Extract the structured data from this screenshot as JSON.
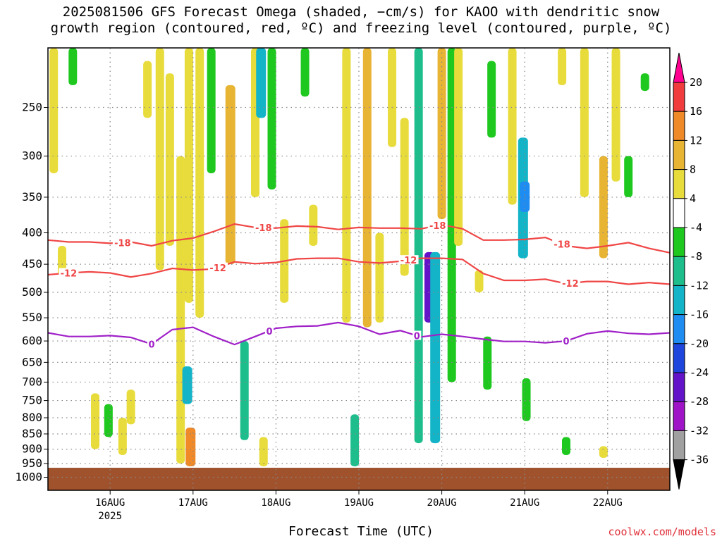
{
  "title_lines": [
    "2025081506 GFS Forecast Omega (shaded, −cm/s) for KAOO with dendritic snow",
    "growth region (contoured, red, ºC) and freezing level (contoured, purple, ºC)"
  ],
  "credit": "coolwx.com/models",
  "chart_data": {
    "type": "heatmap",
    "xlabel": "Forecast Time (UTC)",
    "ylabel": "",
    "x_range_days": [
      15.25,
      22.75
    ],
    "x_ticks": [
      {
        "day": 16,
        "label": "16AUG",
        "sub": "2025"
      },
      {
        "day": 17,
        "label": "17AUG",
        "sub": ""
      },
      {
        "day": 18,
        "label": "18AUG",
        "sub": ""
      },
      {
        "day": 19,
        "label": "19AUG",
        "sub": ""
      },
      {
        "day": 20,
        "label": "20AUG",
        "sub": ""
      },
      {
        "day": 21,
        "label": "21AUG",
        "sub": ""
      },
      {
        "day": 22,
        "label": "22AUG",
        "sub": ""
      }
    ],
    "y_scale": "log",
    "y_range_hpa": [
      1050,
      200
    ],
    "y_ticks": [
      250,
      300,
      350,
      400,
      450,
      500,
      550,
      600,
      650,
      700,
      750,
      800,
      850,
      900,
      950,
      1000
    ],
    "grid": true,
    "ground_level_hpa": 965,
    "colorbar": {
      "labels": [
        "20",
        "16",
        "12",
        "8",
        "4",
        "-4",
        "-8",
        "-12",
        "-16",
        "-20",
        "-24",
        "-28",
        "-32",
        "-36"
      ],
      "colors": [
        "#ff0090",
        "#f03c3c",
        "#f08a28",
        "#e8b434",
        "#e8dc3c",
        "#ffffff",
        "#1ec81e",
        "#1ebe8c",
        "#14b4c8",
        "#1e8cf0",
        "#1e46dc",
        "#6414c8",
        "#a014c8",
        "#a0a0a0",
        "#000000"
      ]
    },
    "shaded_regions": [
      {
        "day": 15.32,
        "p_top": 200,
        "p_bot": 320,
        "val": 5
      },
      {
        "day": 15.42,
        "p_top": 420,
        "p_bot": 470,
        "val": 5
      },
      {
        "day": 15.55,
        "p_top": 200,
        "p_bot": 230,
        "val": -6
      },
      {
        "day": 15.82,
        "p_top": 730,
        "p_bot": 900,
        "val": 6
      },
      {
        "day": 15.98,
        "p_top": 760,
        "p_bot": 860,
        "val": -6
      },
      {
        "day": 16.15,
        "p_top": 800,
        "p_bot": 920,
        "val": 6
      },
      {
        "day": 16.25,
        "p_top": 720,
        "p_bot": 820,
        "val": 5
      },
      {
        "day": 16.45,
        "p_top": 210,
        "p_bot": 260,
        "val": 5
      },
      {
        "day": 16.6,
        "p_top": 200,
        "p_bot": 460,
        "val": 5
      },
      {
        "day": 16.72,
        "p_top": 220,
        "p_bot": 420,
        "val": 5
      },
      {
        "day": 16.85,
        "p_top": 300,
        "p_bot": 950,
        "val": 6
      },
      {
        "day": 16.93,
        "p_top": 660,
        "p_bot": 760,
        "val": -13
      },
      {
        "day": 16.95,
        "p_top": 200,
        "p_bot": 520,
        "val": 5
      },
      {
        "day": 16.97,
        "p_top": 830,
        "p_bot": 960,
        "val": 12
      },
      {
        "day": 17.08,
        "p_top": 200,
        "p_bot": 550,
        "val": 5
      },
      {
        "day": 17.22,
        "p_top": 200,
        "p_bot": 320,
        "val": -6
      },
      {
        "day": 17.45,
        "p_top": 230,
        "p_bot": 450,
        "val": 10
      },
      {
        "day": 17.62,
        "p_top": 600,
        "p_bot": 870,
        "val": -8
      },
      {
        "day": 17.75,
        "p_top": 200,
        "p_bot": 350,
        "val": 5
      },
      {
        "day": 17.82,
        "p_top": 200,
        "p_bot": 260,
        "val": -14
      },
      {
        "day": 17.85,
        "p_top": 860,
        "p_bot": 960,
        "val": 5
      },
      {
        "day": 17.95,
        "p_top": 200,
        "p_bot": 340,
        "val": -6
      },
      {
        "day": 18.1,
        "p_top": 380,
        "p_bot": 520,
        "val": 5
      },
      {
        "day": 18.35,
        "p_top": 200,
        "p_bot": 240,
        "val": -6
      },
      {
        "day": 18.45,
        "p_top": 360,
        "p_bot": 420,
        "val": 5
      },
      {
        "day": 18.85,
        "p_top": 200,
        "p_bot": 560,
        "val": 5
      },
      {
        "day": 18.95,
        "p_top": 790,
        "p_bot": 960,
        "val": -9
      },
      {
        "day": 19.1,
        "p_top": 200,
        "p_bot": 570,
        "val": 9
      },
      {
        "day": 19.25,
        "p_top": 400,
        "p_bot": 560,
        "val": 5
      },
      {
        "day": 19.4,
        "p_top": 200,
        "p_bot": 290,
        "val": 5
      },
      {
        "day": 19.55,
        "p_top": 260,
        "p_bot": 470,
        "val": 5
      },
      {
        "day": 19.72,
        "p_top": 200,
        "p_bot": 880,
        "val": -8
      },
      {
        "day": 19.85,
        "p_top": 430,
        "p_bot": 560,
        "val": -26
      },
      {
        "day": 19.92,
        "p_top": 430,
        "p_bot": 880,
        "val": -13
      },
      {
        "day": 20.0,
        "p_top": 200,
        "p_bot": 380,
        "val": 9
      },
      {
        "day": 20.12,
        "p_top": 200,
        "p_bot": 700,
        "val": -6
      },
      {
        "day": 20.2,
        "p_top": 200,
        "p_bot": 420,
        "val": 5
      },
      {
        "day": 20.45,
        "p_top": 460,
        "p_bot": 500,
        "val": 5
      },
      {
        "day": 20.55,
        "p_top": 590,
        "p_bot": 720,
        "val": -6
      },
      {
        "day": 20.6,
        "p_top": 210,
        "p_bot": 280,
        "val": -6
      },
      {
        "day": 20.85,
        "p_top": 200,
        "p_bot": 360,
        "val": 6
      },
      {
        "day": 20.98,
        "p_top": 280,
        "p_bot": 440,
        "val": -12
      },
      {
        "day": 21.0,
        "p_top": 330,
        "p_bot": 370,
        "val": -17
      },
      {
        "day": 21.02,
        "p_top": 690,
        "p_bot": 810,
        "val": -6
      },
      {
        "day": 21.45,
        "p_top": 200,
        "p_bot": 230,
        "val": 5
      },
      {
        "day": 21.5,
        "p_top": 860,
        "p_bot": 920,
        "val": -6
      },
      {
        "day": 21.72,
        "p_top": 200,
        "p_bot": 350,
        "val": 5
      },
      {
        "day": 21.95,
        "p_top": 300,
        "p_bot": 440,
        "val": 9
      },
      {
        "day": 22.1,
        "p_top": 200,
        "p_bot": 330,
        "val": 5
      },
      {
        "day": 22.25,
        "p_top": 300,
        "p_bot": 350,
        "val": -6
      },
      {
        "day": 21.95,
        "p_top": 890,
        "p_bot": 930,
        "val": 5
      },
      {
        "day": 22.45,
        "p_top": 220,
        "p_bot": 235,
        "val": -6
      }
    ],
    "series": [
      {
        "name": "-18",
        "color": "#f04646",
        "label_days": [
          16.15,
          17.85,
          19.95,
          21.45
        ],
        "days": [
          15.25,
          15.5,
          15.75,
          16.0,
          16.25,
          16.5,
          16.75,
          17.0,
          17.25,
          17.5,
          17.75,
          18.0,
          18.25,
          18.5,
          18.75,
          19.0,
          19.25,
          19.5,
          19.75,
          20.0,
          20.25,
          20.5,
          20.75,
          21.0,
          21.25,
          21.5,
          21.75,
          22.0,
          22.25,
          22.5,
          22.75
        ],
        "hpa": [
          411,
          414,
          414,
          416,
          414,
          420,
          412,
          408,
          398,
          387,
          392,
          393,
          390,
          391,
          395,
          392,
          393,
          393,
          394,
          388,
          394,
          411,
          411,
          410,
          407,
          420,
          424,
          420,
          415,
          424,
          431
        ]
      },
      {
        "name": "-12",
        "color": "#f04646",
        "label_days": [
          15.5,
          17.3,
          19.6,
          21.55
        ],
        "days": [
          15.25,
          15.5,
          15.75,
          16.0,
          16.25,
          16.5,
          16.75,
          17.0,
          17.25,
          17.5,
          17.75,
          18.0,
          18.25,
          18.5,
          18.75,
          19.0,
          19.25,
          19.5,
          19.75,
          20.0,
          20.25,
          20.5,
          20.75,
          21.0,
          21.25,
          21.5,
          21.75,
          22.0,
          22.25,
          22.5,
          22.75
        ],
        "hpa": [
          468,
          465,
          463,
          465,
          472,
          466,
          457,
          460,
          458,
          446,
          449,
          447,
          441,
          440,
          440,
          446,
          448,
          445,
          440,
          440,
          442,
          466,
          478,
          478,
          476,
          484,
          480,
          480,
          485,
          482,
          485
        ]
      },
      {
        "name": "0",
        "color": "#a020c8",
        "label_days": [
          16.5,
          17.92,
          19.7,
          21.5
        ],
        "days": [
          15.25,
          15.5,
          15.75,
          16.0,
          16.25,
          16.5,
          16.75,
          17.0,
          17.25,
          17.5,
          17.75,
          18.0,
          18.25,
          18.5,
          18.75,
          19.0,
          19.25,
          19.5,
          19.75,
          20.0,
          20.25,
          20.5,
          20.75,
          21.0,
          21.25,
          21.5,
          21.75,
          22.0,
          22.25,
          22.5,
          22.75
        ],
        "hpa": [
          582,
          590,
          590,
          588,
          592,
          607,
          575,
          570,
          590,
          608,
          590,
          572,
          568,
          567,
          560,
          568,
          585,
          577,
          591,
          585,
          590,
          596,
          601,
          601,
          604,
          600,
          584,
          578,
          583,
          585,
          582
        ]
      }
    ]
  }
}
